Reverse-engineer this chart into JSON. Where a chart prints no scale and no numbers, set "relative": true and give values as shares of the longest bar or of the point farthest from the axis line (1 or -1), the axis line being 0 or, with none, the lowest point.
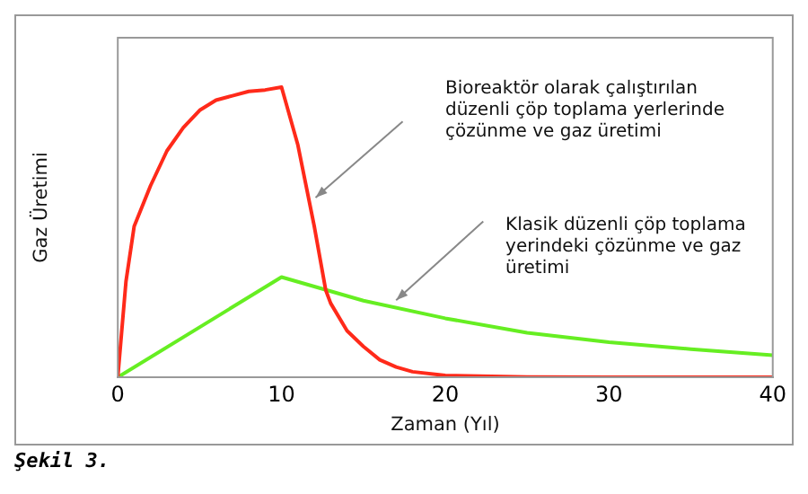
{
  "chart_data": {
    "type": "line",
    "relative": true,
    "xlabel": "Zaman (Yıl)",
    "ylabel": "Gaz Üretimi",
    "xlim": [
      0,
      40
    ],
    "xticks": [
      0,
      10,
      20,
      30,
      40
    ],
    "grid": false,
    "legend": false,
    "marker": "none",
    "line_style": "solid",
    "series": [
      {
        "color": "#ff2a1a",
        "x": [
          0,
          0.5,
          1,
          2,
          3,
          4,
          5,
          6,
          7,
          8,
          9,
          10,
          11,
          12,
          12.7,
          13,
          14,
          15,
          16,
          17,
          18,
          20,
          25,
          30,
          40
        ],
        "values": [
          0,
          0.33,
          0.52,
          0.66,
          0.78,
          0.86,
          0.92,
          0.955,
          0.97,
          0.985,
          0.99,
          1,
          0.8,
          0.52,
          0.3,
          0.255,
          0.16,
          0.106,
          0.06,
          0.035,
          0.019,
          0.006,
          0.001,
          0,
          0
        ]
      },
      {
        "color": "#66ee22",
        "x": [
          0,
          10,
          15,
          20,
          25,
          30,
          35,
          40
        ],
        "values": [
          0,
          0.345,
          0.264,
          0.203,
          0.153,
          0.121,
          0.097,
          0.076
        ]
      }
    ],
    "annotations": [
      "Bioreaktör olarak çalıştırılan düzenli çöp toplama yerlerinde çözünme ve gaz üretimi",
      "Klasik düzenli çöp toplama yerindeki çözünme ve gaz üretimi",
      "Şekil 3."
    ]
  }
}
